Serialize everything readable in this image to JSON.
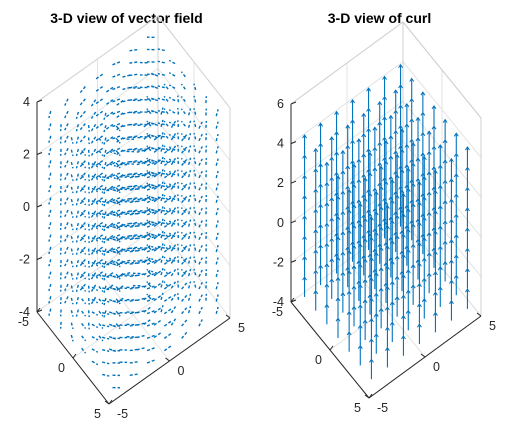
{
  "figure": {
    "background": "#ffffff"
  },
  "chart_data": [
    {
      "type": "quiver3",
      "title": "3-D view of vector field",
      "xlim": [
        -5,
        5
      ],
      "ylim": [
        -5,
        5
      ],
      "zlim": [
        -4,
        4
      ],
      "xticks": [
        -5,
        0,
        5
      ],
      "yticks": [
        -5,
        0,
        5
      ],
      "zticks": [
        -4,
        -2,
        0,
        2,
        4
      ],
      "tick_labels": {
        "x": [
          "-5",
          "0",
          "5"
        ],
        "y": [
          "-5",
          "0",
          "5"
        ],
        "z": [
          "-4",
          "-2",
          "0",
          "2",
          "4"
        ]
      },
      "grid": true,
      "arrow_color": "#0072BD",
      "line_style": "dashed",
      "field": "horizontal swirl about the vertical axis, no vertical component",
      "grid_points": {
        "x": 7,
        "y": 7,
        "z": 17
      }
    },
    {
      "type": "quiver3",
      "title": "3-D view of curl",
      "xlim": [
        -5,
        5
      ],
      "ylim": [
        -5,
        5
      ],
      "zlim": [
        -4,
        6
      ],
      "xticks": [
        -5,
        0,
        5
      ],
      "yticks": [
        -5,
        0,
        5
      ],
      "zticks": [
        -4,
        -2,
        0,
        2,
        4,
        6
      ],
      "tick_labels": {
        "x": [
          "-5",
          "0",
          "5"
        ],
        "y": [
          "-5",
          "0",
          "5"
        ],
        "z": [
          "-4",
          "-2",
          "0",
          "2",
          "4",
          "6"
        ]
      },
      "grid": true,
      "arrow_color": "#0072BD",
      "line_style": "solid",
      "field": "uniform vector pointing in +z direction",
      "grid_points": {
        "x": 7,
        "y": 7,
        "z": 8
      }
    }
  ]
}
